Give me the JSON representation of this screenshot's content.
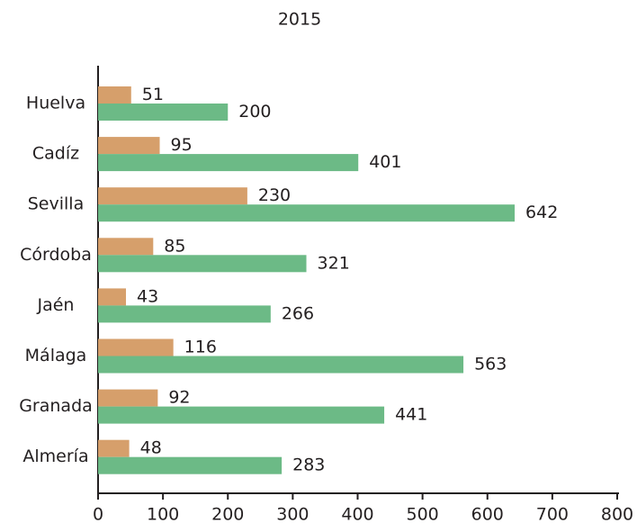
{
  "chart_data": {
    "type": "barh",
    "title": "2015",
    "categories": [
      "Huelva",
      "Cadíz",
      "Sevilla",
      "Córdoba",
      "Jaén",
      "Málaga",
      "Granada",
      "Almería"
    ],
    "series": [
      {
        "color": "#d69f6b",
        "values": [
          51,
          95,
          230,
          85,
          43,
          116,
          92,
          48
        ]
      },
      {
        "color": "#6cba86",
        "values": [
          200,
          401,
          642,
          321,
          266,
          563,
          441,
          283
        ]
      }
    ],
    "xlim": [
      0,
      800
    ],
    "xticks": [
      0,
      100,
      200,
      300,
      400,
      500,
      600,
      700,
      800
    ]
  }
}
